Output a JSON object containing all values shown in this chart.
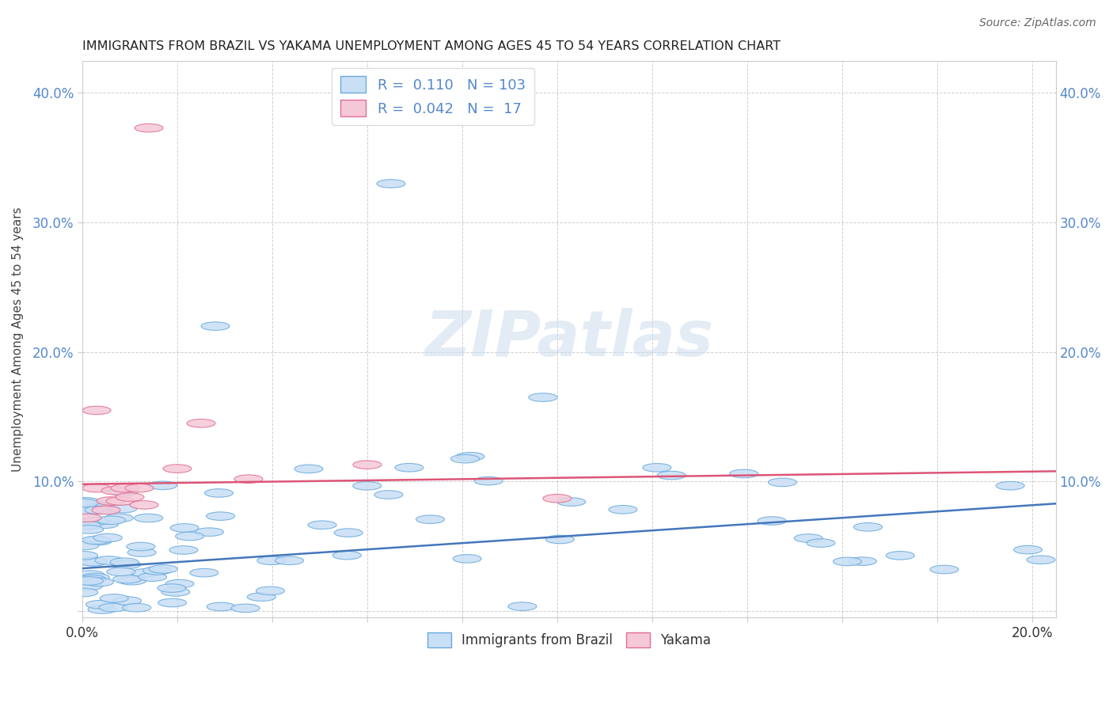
{
  "title": "IMMIGRANTS FROM BRAZIL VS YAKAMA UNEMPLOYMENT AMONG AGES 45 TO 54 YEARS CORRELATION CHART",
  "source": "Source: ZipAtlas.com",
  "ylabel": "Unemployment Among Ages 45 to 54 years",
  "xlim": [
    0.0,
    0.205
  ],
  "ylim": [
    -0.005,
    0.425
  ],
  "xticks": [
    0.0,
    0.02,
    0.04,
    0.06,
    0.08,
    0.1,
    0.12,
    0.14,
    0.16,
    0.18,
    0.2
  ],
  "yticks": [
    0.0,
    0.1,
    0.2,
    0.3,
    0.4
  ],
  "blue_R": 0.11,
  "blue_N": 103,
  "pink_R": 0.042,
  "pink_N": 17,
  "blue_fill": "#c8dff5",
  "blue_edge": "#6aaade",
  "pink_fill": "#f5c8d8",
  "pink_edge": "#e07090",
  "blue_line": "#4477bb",
  "pink_line": "#dd5577",
  "text_color": "#333333",
  "label_color": "#5588cc",
  "grid_color": "#bbbbbb",
  "background": "#ffffff",
  "watermark": "ZIPatlas",
  "blue_trend_x0": 0.0,
  "blue_trend_y0": 0.033,
  "blue_trend_x1": 0.205,
  "blue_trend_y1": 0.083,
  "pink_trend_x0": 0.0,
  "pink_trend_y0": 0.098,
  "pink_trend_x1": 0.205,
  "pink_trend_y1": 0.108
}
